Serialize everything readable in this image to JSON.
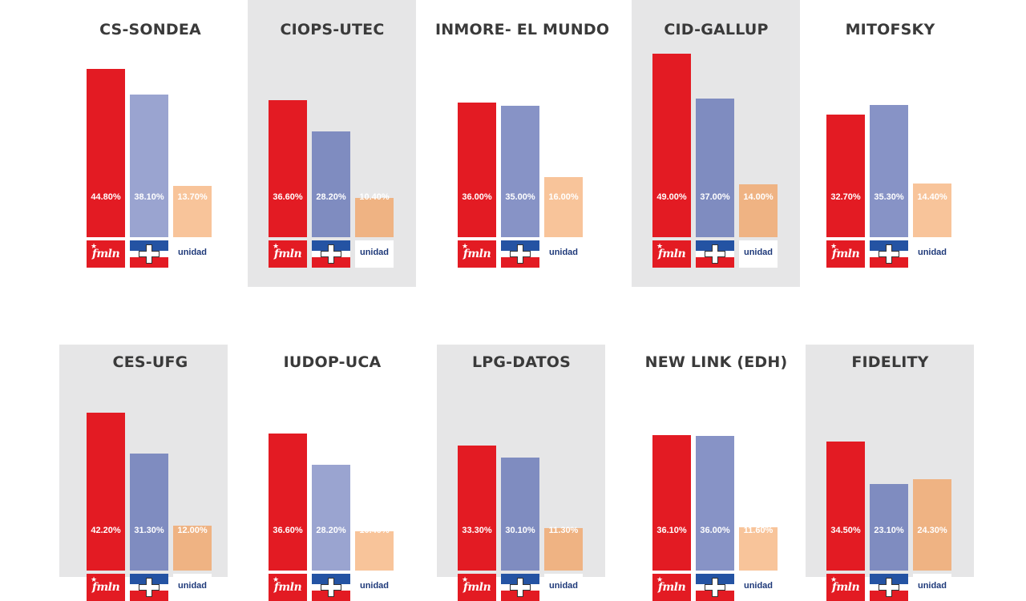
{
  "colors": {
    "fmln_dark": "#e31b23",
    "fmln_light": "#e8242d",
    "arena_light": "#9aa4d0",
    "arena_mid": "#8793c6",
    "arena_dark": "#7f8cc0",
    "unidad_light": "#f8c49a",
    "unidad_dark": "#efb383",
    "panel_shade": "#e6e6e7"
  },
  "logos": {
    "fmln": "fmln",
    "unidad": "unidad",
    "arena": "arena-cross-logo"
  },
  "chart_data": [
    {
      "type": "bar",
      "title": "CS-SONDEA",
      "categories": [
        "FMLN",
        "ARENA",
        "UNIDAD"
      ],
      "values": [
        44.8,
        38.1,
        13.7
      ],
      "labels": [
        "44.80%",
        "38.10%",
        "13.70%"
      ]
    },
    {
      "type": "bar",
      "title": "CIOPS-UTEC",
      "categories": [
        "FMLN",
        "ARENA",
        "UNIDAD"
      ],
      "values": [
        36.6,
        28.2,
        10.4
      ],
      "labels": [
        "36.60%",
        "28.20%",
        "10.40%"
      ]
    },
    {
      "type": "bar",
      "title": "INMORE- EL MUNDO",
      "categories": [
        "FMLN",
        "ARENA",
        "UNIDAD"
      ],
      "values": [
        36.0,
        35.0,
        16.0
      ],
      "labels": [
        "36.00%",
        "35.00%",
        "16.00%"
      ]
    },
    {
      "type": "bar",
      "title": "CID-GALLUP",
      "categories": [
        "FMLN",
        "ARENA",
        "UNIDAD"
      ],
      "values": [
        49.0,
        37.0,
        14.0
      ],
      "labels": [
        "49.00%",
        "37.00%",
        "14.00%"
      ]
    },
    {
      "type": "bar",
      "title": "MITOFSKY",
      "categories": [
        "FMLN",
        "ARENA",
        "UNIDAD"
      ],
      "values": [
        32.7,
        35.3,
        14.4
      ],
      "labels": [
        "32.70%",
        "35.30%",
        "14.40%"
      ]
    },
    {
      "type": "bar",
      "title": "CES-UFG",
      "categories": [
        "FMLN",
        "ARENA",
        "UNIDAD"
      ],
      "values": [
        42.2,
        31.3,
        12.0
      ],
      "labels": [
        "42.20%",
        "31.30%",
        "12.00%"
      ]
    },
    {
      "type": "bar",
      "title": "IUDOP-UCA",
      "categories": [
        "FMLN",
        "ARENA",
        "UNIDAD"
      ],
      "values": [
        36.6,
        28.2,
        10.4
      ],
      "labels": [
        "36.60%",
        "28.20%",
        "10.40%"
      ]
    },
    {
      "type": "bar",
      "title": "LPG-DATOS",
      "categories": [
        "FMLN",
        "ARENA",
        "UNIDAD"
      ],
      "values": [
        33.3,
        30.1,
        11.3
      ],
      "labels": [
        "33.30%",
        "30.10%",
        "11.30%"
      ]
    },
    {
      "type": "bar",
      "title": "NEW LINK (EDH)",
      "categories": [
        "FMLN",
        "ARENA",
        "UNIDAD"
      ],
      "values": [
        36.1,
        36.0,
        11.6
      ],
      "labels": [
        "36.10%",
        "36.00%",
        "11.60%"
      ]
    },
    {
      "type": "bar",
      "title": "FIDELITY",
      "categories": [
        "FMLN",
        "ARENA",
        "UNIDAD"
      ],
      "values": [
        34.5,
        23.1,
        24.3
      ],
      "labels": [
        "34.50%",
        "23.10%",
        "24.30%"
      ]
    }
  ]
}
